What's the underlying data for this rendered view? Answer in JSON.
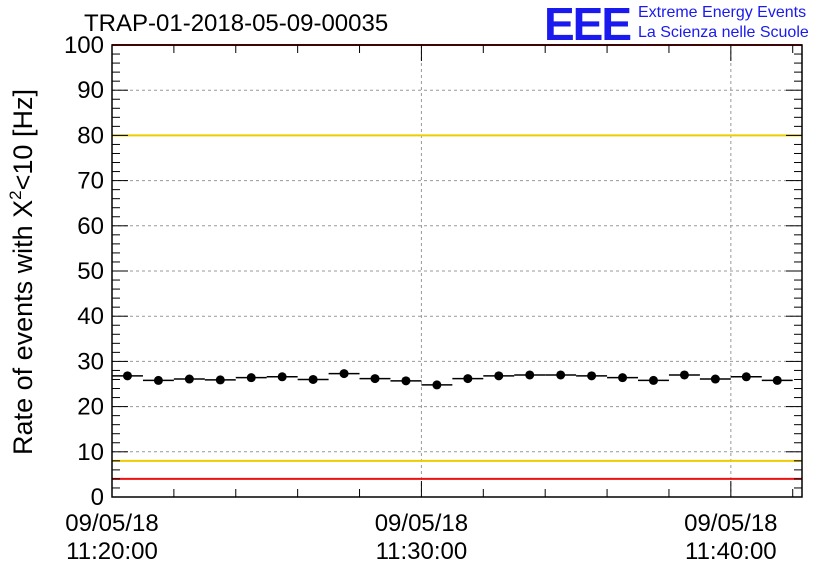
{
  "header": {
    "title": "TRAP-01-2018-05-09-00035",
    "logo_text": "EEE",
    "logo_line1": "Extreme Energy Events",
    "logo_line2": "La Scienza nelle Scuole"
  },
  "colors": {
    "accent": "#1a1aee",
    "limit_red": "#ee1111",
    "limit_yellow": "#eecc00"
  },
  "chart_data": {
    "type": "scatter",
    "title": "TRAP-01-2018-05-09-00035",
    "ylabel_main": "Rate of events with X",
    "ylabel_sup": "2",
    "ylabel_tail": "<10 [Hz]",
    "ylim": [
      0,
      100
    ],
    "yticks": [
      "0",
      "10",
      "20",
      "30",
      "40",
      "50",
      "60",
      "70",
      "80",
      "90",
      "100"
    ],
    "xlim_minutes": [
      0,
      22.3
    ],
    "xticks": [
      {
        "minute": 0,
        "date": "09/05/18",
        "time": "11:20:00"
      },
      {
        "minute": 10,
        "date": "09/05/18",
        "time": "11:30:00"
      },
      {
        "minute": 20,
        "date": "09/05/18",
        "time": "11:40:00"
      }
    ],
    "grid": true,
    "bin_width_minutes": 1,
    "series": [
      {
        "x": [
          0.5,
          1.5,
          2.5,
          3.5,
          4.5,
          5.5,
          6.5,
          7.5,
          8.5,
          9.5,
          10.5,
          11.5,
          12.5,
          13.5,
          14.5,
          15.5,
          16.5,
          17.5,
          18.5,
          19.5,
          20.5,
          21.5
        ],
        "y": [
          26.8,
          25.8,
          26.1,
          25.9,
          26.4,
          26.6,
          26.0,
          27.3,
          26.2,
          25.7,
          24.8,
          26.2,
          26.8,
          27.0,
          27.0,
          26.8,
          26.4,
          25.8,
          27.0,
          26.1,
          26.6,
          25.8
        ]
      }
    ],
    "hlines": [
      {
        "y": 100,
        "color": "#ee1111"
      },
      {
        "y": 80,
        "color": "#eecc00"
      },
      {
        "y": 8,
        "color": "#eecc00"
      },
      {
        "y": 4,
        "color": "#ee1111"
      }
    ]
  }
}
